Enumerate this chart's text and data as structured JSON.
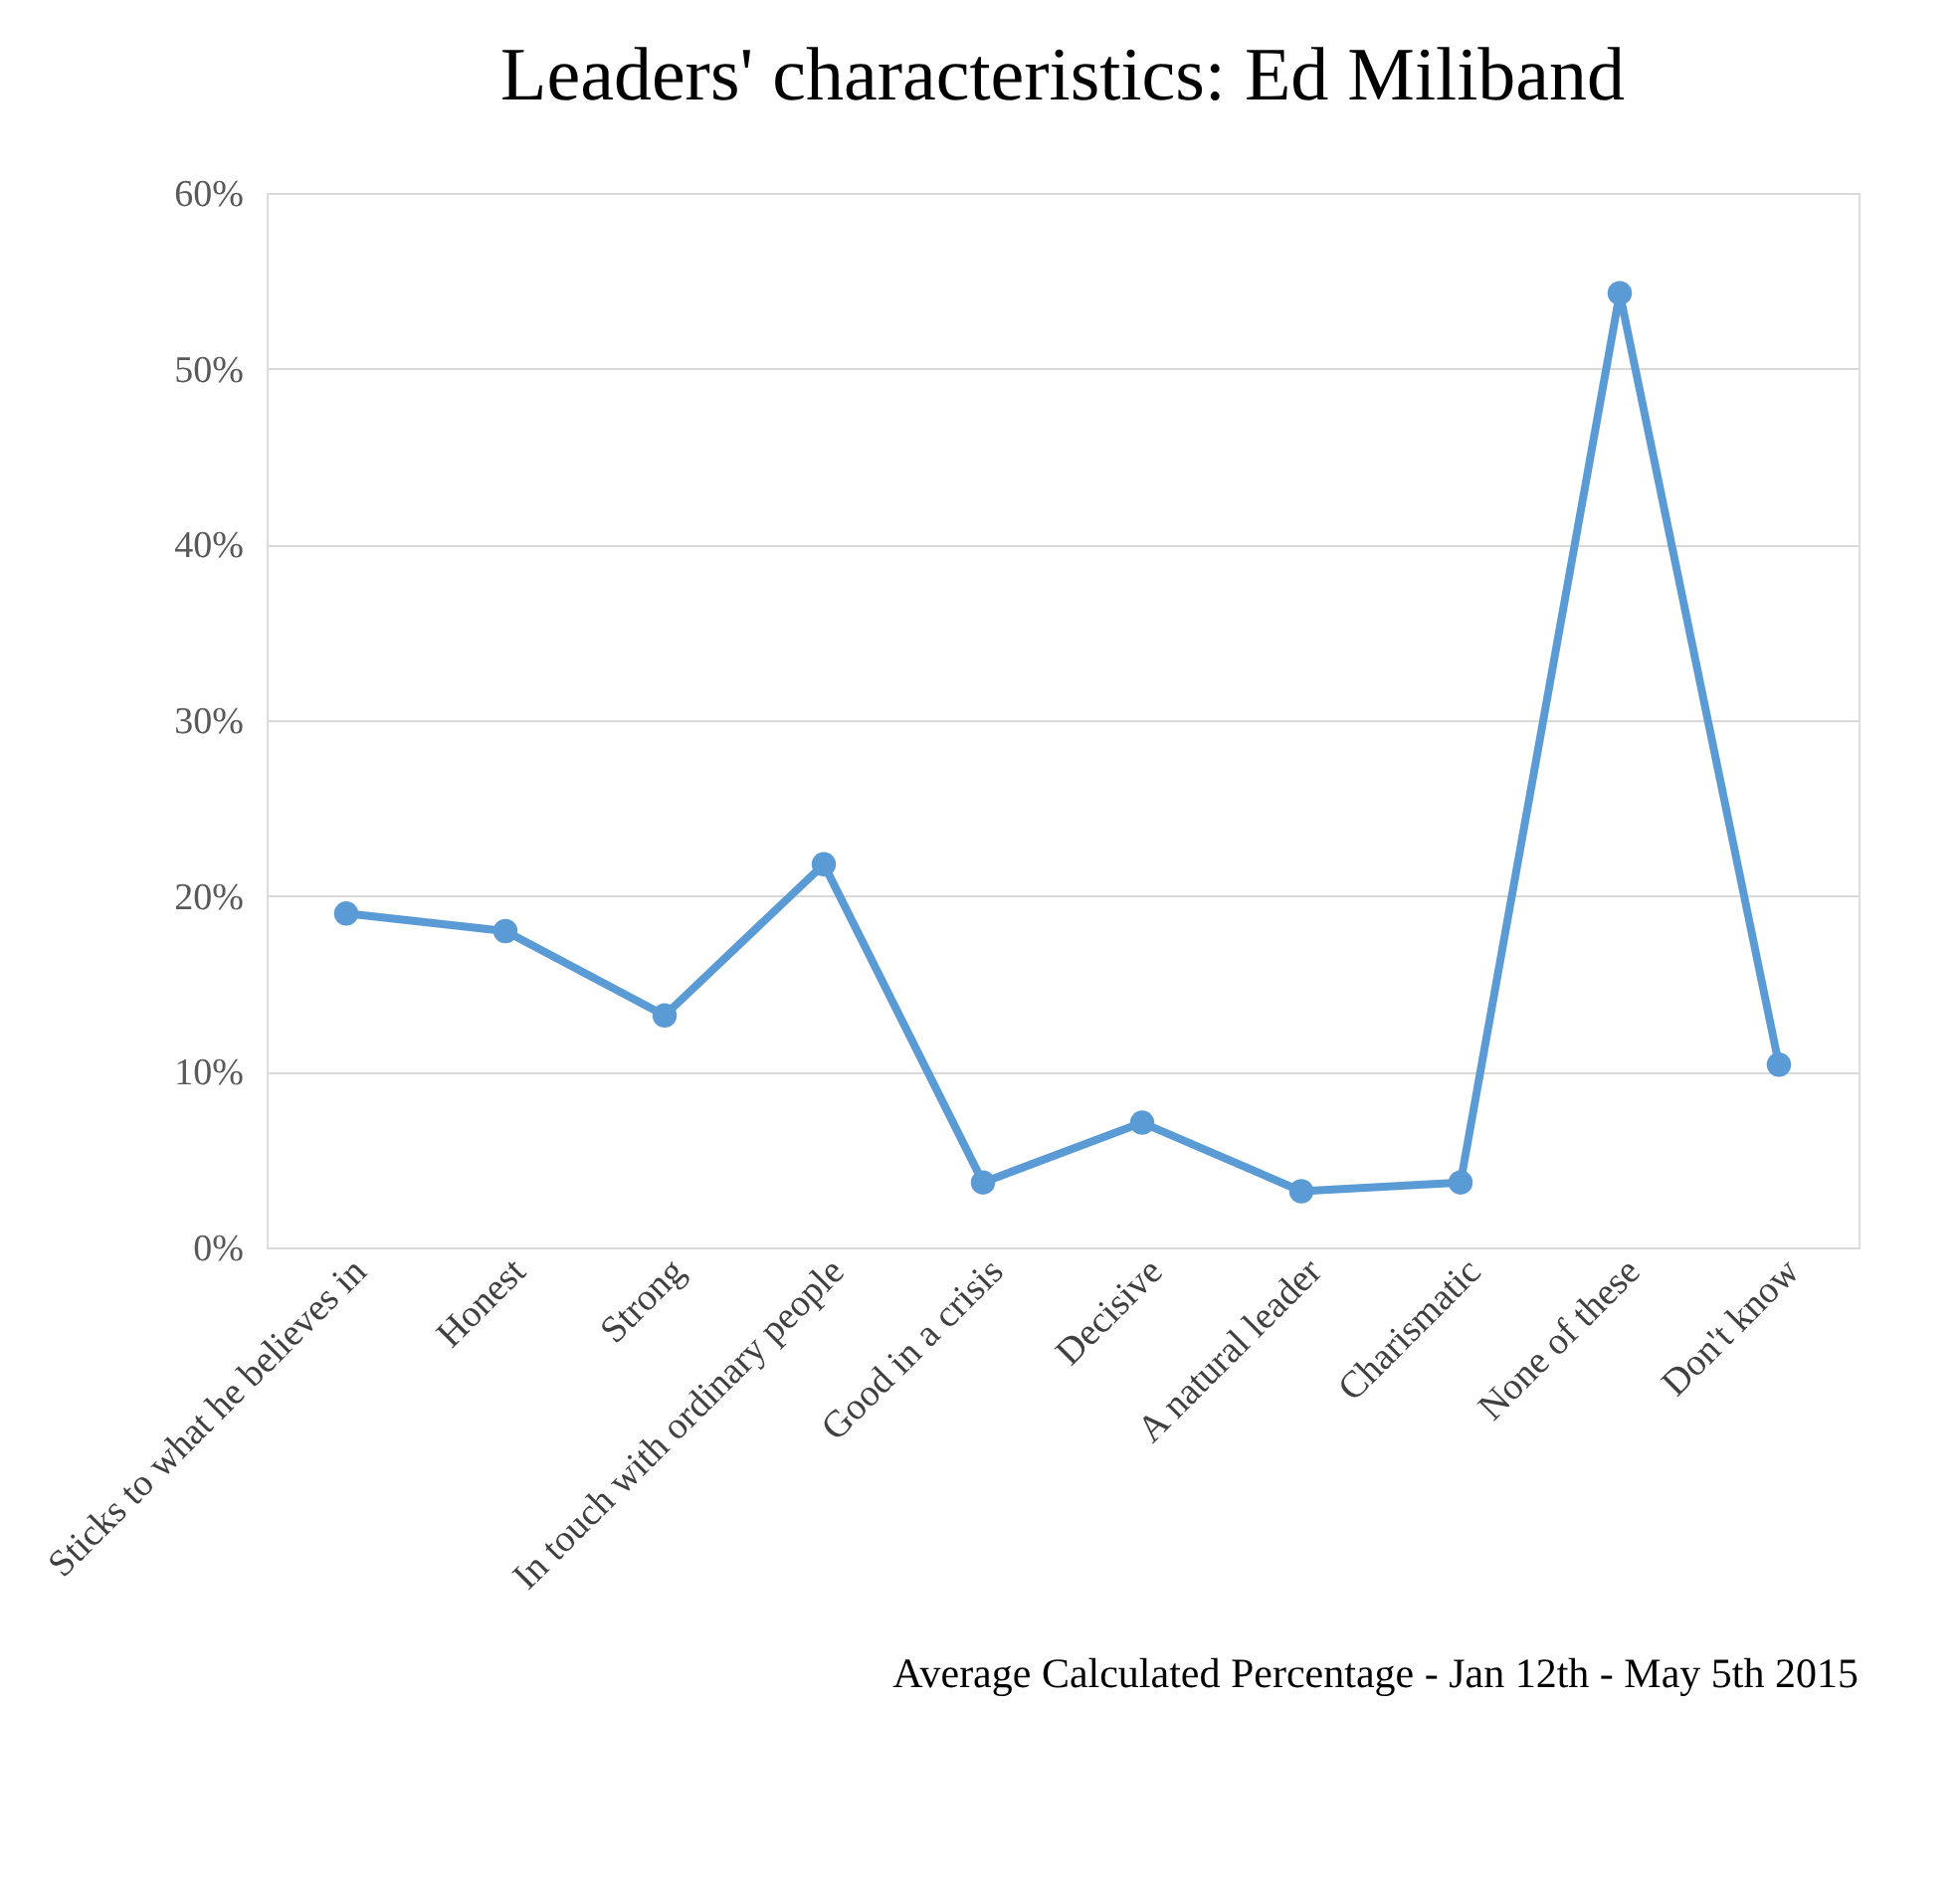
{
  "chart_data": {
    "type": "line",
    "title": "Leaders' characteristics: Ed  Miliband",
    "categories": [
      "Sticks to what he believes in",
      "Honest",
      "Strong",
      "In touch with ordinary people",
      "Good in a crisis",
      "Decisive",
      "A natural leader",
      "Charismatic",
      "None of these",
      "Don't know"
    ],
    "series": [
      {
        "color": "#5b9bd5",
        "values": [
          19.0,
          18.0,
          13.2,
          21.8,
          3.7,
          7.1,
          3.2,
          3.7,
          54.3,
          10.4
        ]
      }
    ],
    "ylim": [
      0,
      60
    ],
    "yticks": [
      {
        "value": 0,
        "label": "0%"
      },
      {
        "value": 10,
        "label": "10%"
      },
      {
        "value": 20,
        "label": "20%"
      },
      {
        "value": 30,
        "label": "30%"
      },
      {
        "value": 40,
        "label": "40%"
      },
      {
        "value": 50,
        "label": "50%"
      },
      {
        "value": 60,
        "label": "60%"
      }
    ],
    "grid": "y",
    "marker": "circle",
    "line_style": "solid",
    "annotations": [
      "Average Calculated Percentage - Jan 12th - May 5th 2015"
    ]
  }
}
